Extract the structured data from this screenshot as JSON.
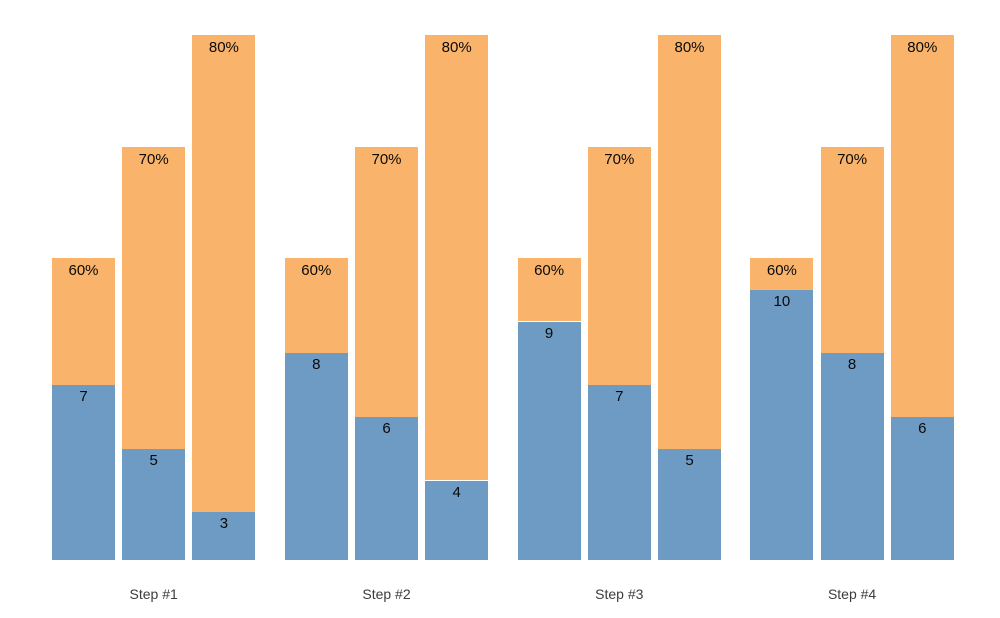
{
  "chart_data": {
    "type": "bar",
    "variant": "grouped-stacked",
    "title": "",
    "xlabel": "",
    "ylabel": "",
    "categories": [
      "Step #1",
      "Step #2",
      "Step #3",
      "Step #4"
    ],
    "columns_per_group": [
      {
        "pct_label": "60%",
        "stack_top_value": 11.0
      },
      {
        "pct_label": "70%",
        "stack_top_value": 14.5
      },
      {
        "pct_label": "80%",
        "stack_top_value": 18.0
      }
    ],
    "series": [
      {
        "name": "blue-bottom-segment",
        "color": "#6d9bc3",
        "values_by_group": [
          [
            7,
            5,
            3
          ],
          [
            8,
            6,
            4
          ],
          [
            9,
            7,
            5
          ],
          [
            10,
            8,
            6
          ]
        ]
      },
      {
        "name": "orange-top-segment",
        "color": "#f9b36a",
        "labels": [
          "60%",
          "70%",
          "80%"
        ]
      }
    ],
    "axis": {
      "y_min": 1.5,
      "y_max": 18.5,
      "axes_hidden": true,
      "grid": false,
      "legend": "none"
    }
  },
  "labels": {
    "group_labels": [
      "Step #1",
      "Step #2",
      "Step #3",
      "Step #4"
    ]
  },
  "colors": {
    "blue": "#6d9bc3",
    "orange": "#f9b36a",
    "bar_label_text": "#0a0a0a",
    "axis_label_text": "#3c3c3c",
    "background": "#ffffff"
  }
}
